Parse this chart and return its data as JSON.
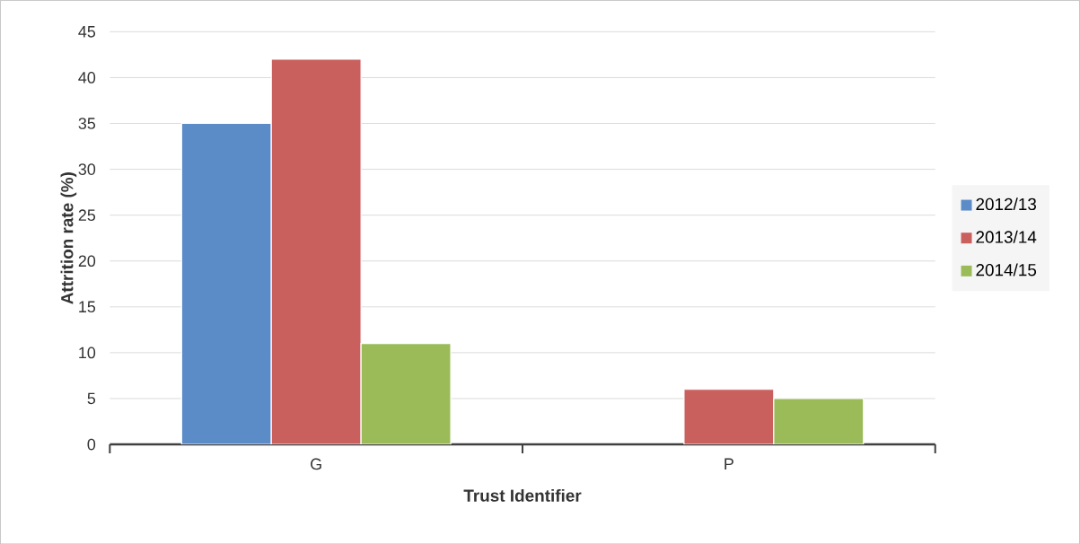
{
  "chart_data": {
    "type": "bar",
    "xlabel": "Trust Identifier",
    "ylabel": "Attrition rate (%)",
    "categories": [
      "G",
      "P"
    ],
    "series": [
      {
        "name": "2012/13",
        "color": "#5b8cc8",
        "values": [
          35,
          null
        ]
      },
      {
        "name": "2013/14",
        "color": "#c9605e",
        "values": [
          42,
          6
        ]
      },
      {
        "name": "2014/15",
        "color": "#9bbb59",
        "values": [
          11,
          5
        ]
      }
    ],
    "ylim": [
      0,
      45
    ],
    "yticks": [
      0,
      5,
      10,
      15,
      20,
      25,
      30,
      35,
      40,
      45
    ],
    "grid": "y",
    "legend": "right"
  }
}
